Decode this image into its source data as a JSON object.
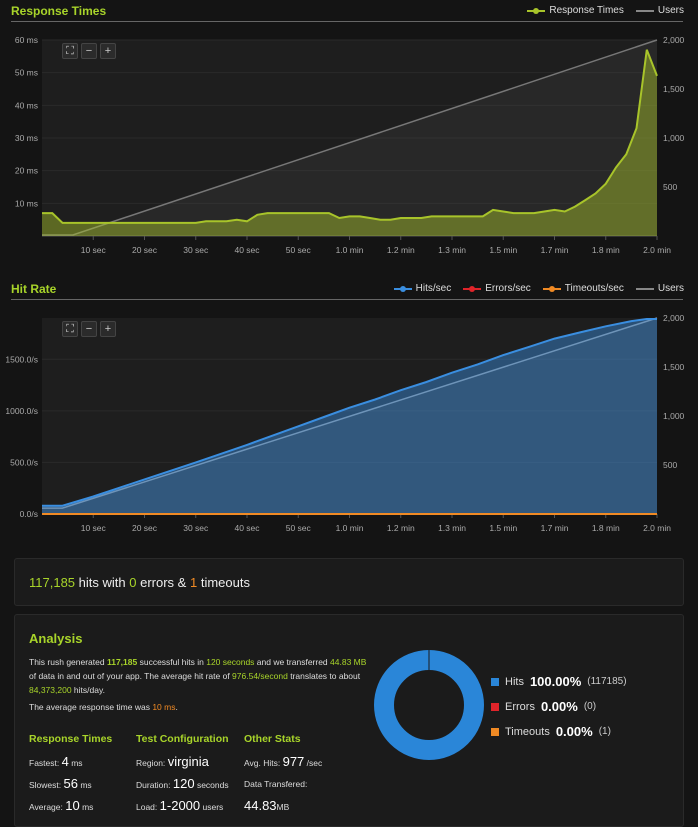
{
  "chart_data": [
    {
      "type": "area",
      "title": "Response Times",
      "legend": [
        "Response Times",
        "Users"
      ],
      "x_ticks": [
        "10 sec",
        "20 sec",
        "30 sec",
        "40 sec",
        "50 sec",
        "1.0 min",
        "1.2 min",
        "1.3 min",
        "1.5 min",
        "1.7 min",
        "1.8 min",
        "2.0 min"
      ],
      "y_ticks": [
        "10 ms",
        "20 ms",
        "30 ms",
        "40 ms",
        "50 ms",
        "60 ms"
      ],
      "y2_ticks": [
        "500",
        "1,000",
        "1,500",
        "2,000"
      ],
      "xlim": [
        0,
        120
      ],
      "ylim": [
        0,
        60
      ],
      "y2lim": [
        0,
        2000
      ],
      "series": [
        {
          "name": "Response Times",
          "color": "#a8c42a",
          "x": [
            0,
            2,
            4,
            6,
            8,
            10,
            12,
            14,
            16,
            18,
            20,
            22,
            24,
            26,
            28,
            30,
            32,
            34,
            36,
            38,
            40,
            42,
            44,
            46,
            48,
            50,
            52,
            54,
            56,
            58,
            60,
            62,
            64,
            66,
            68,
            70,
            72,
            74,
            76,
            78,
            80,
            82,
            84,
            86,
            88,
            90,
            92,
            94,
            96,
            98,
            100,
            102,
            104,
            106,
            108,
            110,
            112,
            114,
            116,
            118,
            120
          ],
          "values": [
            7,
            7,
            4,
            4,
            4,
            4,
            4,
            4,
            4,
            4,
            4,
            4,
            4,
            4,
            4,
            4,
            4.5,
            4.5,
            4.5,
            5,
            4.5,
            6.5,
            7,
            7,
            7,
            7,
            7,
            7,
            7,
            5.5,
            6,
            6,
            5.5,
            5,
            5,
            5.5,
            5.5,
            5.5,
            6,
            6,
            6,
            6,
            6,
            6,
            8,
            7.5,
            7,
            7,
            7,
            7.5,
            8,
            7.5,
            9,
            11,
            13,
            16,
            21,
            25,
            33,
            57,
            49
          ]
        },
        {
          "name": "Users",
          "color": "#777777",
          "axis": "right",
          "x": [
            0,
            6,
            120
          ],
          "values": [
            10,
            10,
            2000
          ]
        }
      ]
    },
    {
      "type": "area",
      "title": "Hit Rate",
      "legend": [
        "Hits/sec",
        "Errors/sec",
        "Timeouts/sec",
        "Users"
      ],
      "x_ticks": [
        "10 sec",
        "20 sec",
        "30 sec",
        "40 sec",
        "50 sec",
        "1.0 min",
        "1.2 min",
        "1.3 min",
        "1.5 min",
        "1.7 min",
        "1.8 min",
        "2.0 min"
      ],
      "y_ticks": [
        "0.0/s",
        "500.0/s",
        "1000.0/s",
        "1500.0/s"
      ],
      "y2_ticks": [
        "500",
        "1,000",
        "1,500",
        "2,000"
      ],
      "xlim": [
        0,
        120
      ],
      "ylim": [
        0,
        1900
      ],
      "y2lim": [
        0,
        2000
      ],
      "series": [
        {
          "name": "Hits/sec",
          "color": "#3a8ee0",
          "x": [
            0,
            4,
            10,
            20,
            30,
            40,
            50,
            55,
            60,
            65,
            70,
            75,
            80,
            85,
            90,
            95,
            100,
            105,
            110,
            115,
            118,
            120
          ],
          "values": [
            80,
            80,
            170,
            335,
            500,
            670,
            850,
            940,
            1030,
            1110,
            1200,
            1280,
            1370,
            1450,
            1540,
            1620,
            1700,
            1760,
            1820,
            1870,
            1890,
            1890
          ]
        },
        {
          "name": "Errors/sec",
          "color": "#e0242a",
          "x": [
            0,
            120
          ],
          "values": [
            0,
            0
          ]
        },
        {
          "name": "Timeouts/sec",
          "color": "#f08a24",
          "x": [
            0,
            120
          ],
          "values": [
            0,
            0
          ]
        },
        {
          "name": "Users",
          "color": "#999999",
          "axis": "right",
          "x": [
            0,
            4,
            120
          ],
          "values": [
            60,
            60,
            2000
          ]
        }
      ]
    },
    {
      "type": "pie",
      "categories": [
        "Hits",
        "Errors",
        "Timeouts"
      ],
      "values": [
        117185,
        0,
        1
      ],
      "colors": [
        "#2a86d8",
        "#e0242a",
        "#f08a24"
      ]
    }
  ],
  "summary": {
    "hits": "117,185",
    "hits_text": "hits with",
    "errors": "0",
    "errors_text": "errors &",
    "timeouts": "1",
    "timeouts_text": "timeouts"
  },
  "analysis": {
    "title": "Analysis",
    "p1_a": "This rush generated ",
    "p1_hits": "117,185",
    "p1_b": " successful hits in ",
    "p1_duration": "120 seconds",
    "p1_c": " and we transferred ",
    "p1_data": "44.83 MB",
    "p1_d": " of data in and out of your app. The average hit rate of ",
    "p1_rate": "976.54/second",
    "p1_e": " translates to about ",
    "p1_daily": "84,373,200",
    "p1_f": " hits/day.",
    "p2_a": "The average response time was ",
    "p2_value": "10 ms",
    "p2_b": "."
  },
  "response_times": {
    "heading": "Response Times",
    "fastest_label": "Fastest:",
    "fastest_value": "4",
    "slowest_label": "Slowest:",
    "slowest_value": "56",
    "average_label": "Average:",
    "average_value": "10",
    "unit": "ms"
  },
  "test_config": {
    "heading": "Test Configuration",
    "region_label": "Region:",
    "region_value": "virginia",
    "duration_label": "Duration:",
    "duration_value": "120",
    "duration_unit": "seconds",
    "load_label": "Load:",
    "load_value": "1-2000",
    "load_unit": "users"
  },
  "other_stats": {
    "heading": "Other Stats",
    "avg_hits_label": "Avg. Hits:",
    "avg_hits_value": "977",
    "avg_hits_unit": "/sec",
    "data_label": "Data Transfered:",
    "data_value": "44.83",
    "data_unit": "MB"
  },
  "pie_legend": [
    {
      "label": "Hits",
      "pct": "100.00%",
      "count": "(117185)"
    },
    {
      "label": "Errors",
      "pct": "0.00%",
      "count": "(0)"
    },
    {
      "label": "Timeouts",
      "pct": "0.00%",
      "count": "(1)"
    }
  ],
  "icons": {
    "reset": "reset-zoom-icon",
    "zoom_out": "zoom-out-icon",
    "zoom_in": "zoom-in-icon"
  }
}
